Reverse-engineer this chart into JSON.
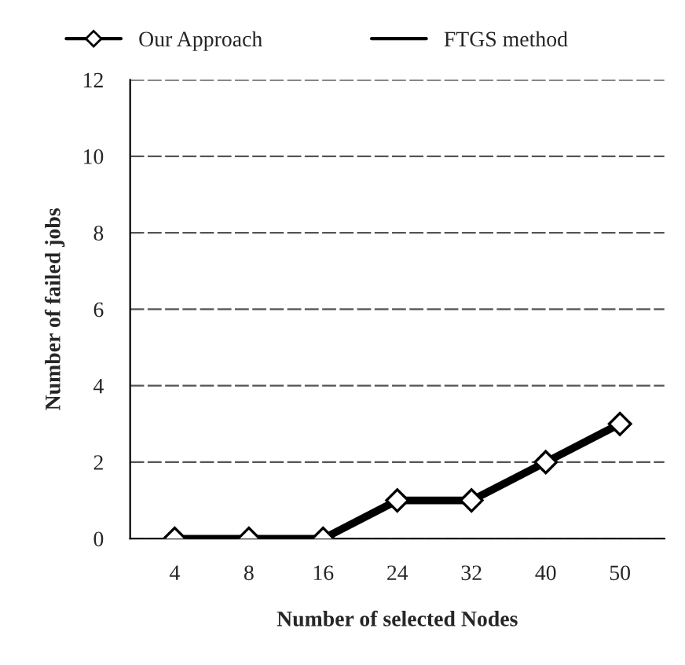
{
  "chart_data": {
    "type": "line",
    "xlabel": "Number of selected Nodes",
    "ylabel": "Number of failed jobs",
    "categories": [
      "4",
      "8",
      "16",
      "24",
      "32",
      "40",
      "50"
    ],
    "series": [
      {
        "name": "Our Approach",
        "color": "#000000",
        "values": [
          0,
          0,
          0,
          1,
          1,
          2,
          3
        ],
        "marker": "diamond"
      },
      {
        "name": "FTGS method",
        "color": "#000000",
        "values": [
          null,
          null,
          null,
          null,
          null,
          null,
          null
        ],
        "marker": "none"
      }
    ],
    "ylim": [
      0,
      12
    ],
    "yticks": [
      0,
      2,
      4,
      6,
      8,
      10,
      12
    ],
    "grid": "y",
    "legend": "top"
  }
}
